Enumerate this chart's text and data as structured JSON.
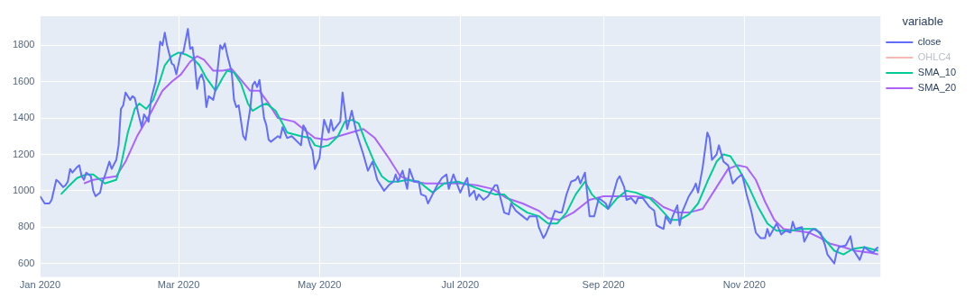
{
  "chart_data": {
    "type": "line",
    "legend_title": "variable",
    "legend": "right",
    "grid": true,
    "marker": "none",
    "line_style": "solid",
    "xlim": [
      "2020-01-01",
      "2020-12-30"
    ],
    "xticks": [
      {
        "value": "2020-01-01",
        "label": "Jan 2020"
      },
      {
        "value": "2020-03-01",
        "label": "Mar 2020"
      },
      {
        "value": "2020-05-01",
        "label": "May 2020"
      },
      {
        "value": "2020-07-01",
        "label": "Jul 2020"
      },
      {
        "value": "2020-09-01",
        "label": "Sep 2020"
      },
      {
        "value": "2020-11-01",
        "label": "Nov 2020"
      }
    ],
    "ylim": [
      525,
      1960
    ],
    "yticks": [
      600,
      800,
      1000,
      1200,
      1400,
      1600,
      1800
    ],
    "series": [
      {
        "name": "close",
        "color": "#636efa",
        "x": [
          "2020-01-01",
          "2020-01-03",
          "2020-01-05",
          "2020-01-06",
          "2020-01-08",
          "2020-01-09",
          "2020-01-11",
          "2020-01-12",
          "2020-01-13",
          "2020-01-14",
          "2020-01-15",
          "2020-01-17",
          "2020-01-18",
          "2020-01-19",
          "2020-01-20",
          "2020-01-21",
          "2020-01-23",
          "2020-01-24",
          "2020-01-25",
          "2020-01-27",
          "2020-01-28",
          "2020-01-29",
          "2020-01-31",
          "2020-02-01",
          "2020-02-03",
          "2020-02-04",
          "2020-02-05",
          "2020-02-06",
          "2020-02-07",
          "2020-02-09",
          "2020-02-10",
          "2020-02-11",
          "2020-02-13",
          "2020-02-14",
          "2020-02-15",
          "2020-02-17",
          "2020-02-18",
          "2020-02-20",
          "2020-02-21",
          "2020-02-22",
          "2020-02-23",
          "2020-02-24",
          "2020-02-25",
          "2020-02-27",
          "2020-02-28",
          "2020-02-29",
          "2020-03-02",
          "2020-03-03",
          "2020-03-05",
          "2020-03-06",
          "2020-03-07",
          "2020-03-08",
          "2020-03-09",
          "2020-03-10",
          "2020-03-11",
          "2020-03-12",
          "2020-03-13",
          "2020-03-14",
          "2020-03-16",
          "2020-03-17",
          "2020-03-19",
          "2020-03-20",
          "2020-03-21",
          "2020-03-22",
          "2020-03-24",
          "2020-03-25",
          "2020-03-26",
          "2020-03-27",
          "2020-03-29",
          "2020-03-30",
          "2020-03-31",
          "2020-04-01",
          "2020-04-02",
          "2020-04-03",
          "2020-04-04",
          "2020-04-05",
          "2020-04-07",
          "2020-04-08",
          "2020-04-09",
          "2020-04-10",
          "2020-04-13",
          "2020-04-14",
          "2020-04-15",
          "2020-04-17",
          "2020-04-19",
          "2020-04-23",
          "2020-04-24",
          "2020-04-25",
          "2020-04-27",
          "2020-04-28",
          "2020-04-29",
          "2020-05-01",
          "2020-05-03",
          "2020-05-05",
          "2020-05-06",
          "2020-05-07",
          "2020-05-10",
          "2020-05-11",
          "2020-05-13",
          "2020-05-15",
          "2020-05-17",
          "2020-05-20",
          "2020-05-22",
          "2020-05-24",
          "2020-05-26",
          "2020-05-29",
          "2020-05-31",
          "2020-06-02",
          "2020-06-03",
          "2020-06-04",
          "2020-06-06",
          "2020-06-08",
          "2020-06-09",
          "2020-06-11",
          "2020-06-13",
          "2020-06-14",
          "2020-06-16",
          "2020-06-17",
          "2020-06-19",
          "2020-06-21",
          "2020-06-23",
          "2020-06-25",
          "2020-06-26",
          "2020-06-28",
          "2020-07-01",
          "2020-07-02",
          "2020-07-04",
          "2020-07-05",
          "2020-07-07",
          "2020-07-08",
          "2020-07-09",
          "2020-07-11",
          "2020-07-13",
          "2020-07-16",
          "2020-07-17",
          "2020-07-20",
          "2020-07-22",
          "2020-07-23",
          "2020-07-25",
          "2020-07-27",
          "2020-07-30",
          "2020-07-31",
          "2020-08-03",
          "2020-08-04",
          "2020-08-06",
          "2020-08-07",
          "2020-08-09",
          "2020-08-11",
          "2020-08-13",
          "2020-08-14",
          "2020-08-16",
          "2020-08-18",
          "2020-08-20",
          "2020-08-21",
          "2020-08-22",
          "2020-08-24",
          "2020-08-26",
          "2020-08-28",
          "2020-08-30",
          "2020-09-02",
          "2020-09-03",
          "2020-09-05",
          "2020-09-07",
          "2020-09-08",
          "2020-09-10",
          "2020-09-11",
          "2020-09-13",
          "2020-09-15",
          "2020-09-16",
          "2020-09-18",
          "2020-09-21",
          "2020-09-23",
          "2020-09-24",
          "2020-09-27",
          "2020-09-28",
          "2020-09-30",
          "2020-10-01",
          "2020-10-03",
          "2020-10-04",
          "2020-10-05",
          "2020-10-08",
          "2020-10-10",
          "2020-10-11",
          "2020-10-12",
          "2020-10-14",
          "2020-10-16",
          "2020-10-17",
          "2020-10-18",
          "2020-10-20",
          "2020-10-21",
          "2020-10-23",
          "2020-10-25",
          "2020-10-27",
          "2020-10-29",
          "2020-10-31",
          "2020-11-01",
          "2020-11-02",
          "2020-11-04",
          "2020-11-06",
          "2020-11-08",
          "2020-11-10",
          "2020-11-11",
          "2020-11-12",
          "2020-11-15",
          "2020-11-17",
          "2020-11-19",
          "2020-11-21",
          "2020-11-22",
          "2020-11-23",
          "2020-11-26",
          "2020-11-27",
          "2020-11-29",
          "2020-12-01",
          "2020-12-04",
          "2020-12-06",
          "2020-12-07",
          "2020-12-10",
          "2020-12-11",
          "2020-12-12",
          "2020-12-15",
          "2020-12-17",
          "2020-12-18",
          "2020-12-21",
          "2020-12-23",
          "2020-12-25",
          "2020-12-27",
          "2020-12-28",
          "2020-12-29"
        ],
        "values": [
          970,
          930,
          930,
          950,
          1060,
          1050,
          1020,
          1030,
          1050,
          1120,
          1100,
          1130,
          1140,
          1080,
          1060,
          1100,
          1080,
          1000,
          970,
          990,
          1050,
          1080,
          1160,
          1120,
          1170,
          1250,
          1450,
          1470,
          1540,
          1500,
          1520,
          1510,
          1400,
          1350,
          1420,
          1380,
          1500,
          1600,
          1700,
          1820,
          1800,
          1870,
          1800,
          1700,
          1690,
          1640,
          1760,
          1760,
          1890,
          1780,
          1790,
          1700,
          1560,
          1620,
          1640,
          1600,
          1460,
          1520,
          1500,
          1560,
          1800,
          1780,
          1810,
          1750,
          1650,
          1500,
          1460,
          1470,
          1300,
          1280,
          1370,
          1450,
          1580,
          1600,
          1570,
          1610,
          1400,
          1360,
          1280,
          1270,
          1300,
          1290,
          1350,
          1290,
          1300,
          1250,
          1360,
          1340,
          1250,
          1220,
          1120,
          1180,
          1390,
          1320,
          1390,
          1330,
          1380,
          1540,
          1340,
          1440,
          1320,
          1200,
          1110,
          1160,
          1060,
          1000,
          1030,
          1050,
          1090,
          1050,
          1110,
          1010,
          1120,
          1050,
          1050,
          980,
          970,
          930,
          980,
          1030,
          1070,
          1090,
          1010,
          1090,
          990,
          1020,
          1070,
          970,
          1000,
          950,
          980,
          950,
          970,
          1030,
          1030,
          880,
          870,
          930,
          890,
          870,
          840,
          860,
          860,
          800,
          740,
          760,
          820,
          890,
          880,
          880,
          980,
          1050,
          1060,
          1080,
          1040,
          1100,
          860,
          860,
          960,
          930,
          900,
          970,
          1060,
          1080,
          1020,
          950,
          960,
          930,
          960,
          960,
          910,
          890,
          810,
          790,
          860,
          820,
          860,
          920,
          810,
          880,
          970,
          1010,
          1040,
          990,
          1130,
          1320,
          1290,
          1170,
          1200,
          1250,
          1160,
          1140,
          1040,
          1070,
          1090,
          1040,
          980,
          890,
          770,
          740,
          740,
          790,
          750,
          820,
          760,
          780,
          770,
          830,
          790,
          800,
          720,
          770,
          790,
          770,
          700,
          650,
          600,
          660,
          690,
          700,
          750,
          680,
          620,
          690,
          670,
          660,
          680,
          690
        ]
      },
      {
        "name": "OHLC4",
        "color": "#ef553b"
      },
      {
        "name": "SMA_10",
        "color": "#00cc96",
        "x": [
          "2020-01-10",
          "2020-01-13",
          "2020-01-17",
          "2020-01-21",
          "2020-01-24",
          "2020-01-27",
          "2020-01-29",
          "2020-02-03",
          "2020-02-05",
          "2020-02-08",
          "2020-02-11",
          "2020-02-13",
          "2020-02-16",
          "2020-02-19",
          "2020-02-22",
          "2020-02-24",
          "2020-02-27",
          "2020-03-01",
          "2020-03-04",
          "2020-03-07",
          "2020-03-10",
          "2020-03-13",
          "2020-03-17",
          "2020-03-20",
          "2020-03-22",
          "2020-03-25",
          "2020-03-28",
          "2020-03-31",
          "2020-04-02",
          "2020-04-06",
          "2020-04-08",
          "2020-04-12",
          "2020-04-15",
          "2020-04-17",
          "2020-04-23",
          "2020-04-27",
          "2020-04-29",
          "2020-05-02",
          "2020-05-05",
          "2020-05-09",
          "2020-05-12",
          "2020-05-15",
          "2020-05-18",
          "2020-05-21",
          "2020-05-25",
          "2020-05-28",
          "2020-05-31",
          "2020-06-04",
          "2020-06-08",
          "2020-06-13",
          "2020-06-19",
          "2020-06-24",
          "2020-06-30",
          "2020-07-05",
          "2020-07-11",
          "2020-07-16",
          "2020-07-20",
          "2020-07-24",
          "2020-07-30",
          "2020-08-04",
          "2020-08-08",
          "2020-08-12",
          "2020-08-16",
          "2020-08-20",
          "2020-08-24",
          "2020-08-27",
          "2020-08-31",
          "2020-09-03",
          "2020-09-07",
          "2020-09-11",
          "2020-09-15",
          "2020-09-21",
          "2020-09-25",
          "2020-09-30",
          "2020-10-04",
          "2020-10-08",
          "2020-10-12",
          "2020-10-16",
          "2020-10-20",
          "2020-10-23",
          "2020-10-26",
          "2020-10-30",
          "2020-11-03",
          "2020-11-07",
          "2020-11-11",
          "2020-11-15",
          "2020-11-21",
          "2020-11-26",
          "2020-12-02",
          "2020-12-06",
          "2020-12-10",
          "2020-12-14",
          "2020-12-18",
          "2020-12-23",
          "2020-12-26",
          "2020-12-29"
        ],
        "values": [
          980,
          1020,
          1070,
          1090,
          1090,
          1060,
          1040,
          1060,
          1140,
          1320,
          1450,
          1480,
          1450,
          1500,
          1610,
          1690,
          1740,
          1760,
          1750,
          1730,
          1690,
          1620,
          1550,
          1620,
          1660,
          1650,
          1590,
          1480,
          1440,
          1470,
          1480,
          1440,
          1370,
          1320,
          1300,
          1290,
          1250,
          1240,
          1250,
          1300,
          1380,
          1390,
          1370,
          1270,
          1150,
          1080,
          1050,
          1050,
          1060,
          1050,
          990,
          1040,
          1050,
          1030,
          1000,
          980,
          980,
          930,
          880,
          860,
          820,
          820,
          880,
          980,
          1050,
          980,
          930,
          900,
          960,
          1000,
          990,
          960,
          910,
          840,
          840,
          870,
          930,
          1050,
          1160,
          1200,
          1190,
          1110,
          1020,
          910,
          820,
          780,
          780,
          790,
          790,
          730,
          670,
          650,
          680,
          690,
          680,
          670
        ]
      },
      {
        "name": "SMA_20",
        "color": "#ab63fa",
        "x": [
          "2020-01-20",
          "2020-01-24",
          "2020-01-29",
          "2020-02-03",
          "2020-02-07",
          "2020-02-12",
          "2020-02-18",
          "2020-02-23",
          "2020-02-27",
          "2020-03-02",
          "2020-03-06",
          "2020-03-09",
          "2020-03-12",
          "2020-03-16",
          "2020-03-20",
          "2020-03-24",
          "2020-03-28",
          "2020-04-01",
          "2020-04-05",
          "2020-04-09",
          "2020-04-13",
          "2020-04-20",
          "2020-04-25",
          "2020-04-29",
          "2020-05-04",
          "2020-05-12",
          "2020-05-20",
          "2020-05-25",
          "2020-05-31",
          "2020-06-05",
          "2020-06-11",
          "2020-06-16",
          "2020-06-24",
          "2020-07-01",
          "2020-07-08",
          "2020-07-15",
          "2020-07-21",
          "2020-07-28",
          "2020-08-04",
          "2020-08-08",
          "2020-08-13",
          "2020-08-19",
          "2020-08-26",
          "2020-09-01",
          "2020-09-07",
          "2020-09-14",
          "2020-09-22",
          "2020-09-27",
          "2020-10-03",
          "2020-10-08",
          "2020-10-14",
          "2020-10-19",
          "2020-10-25",
          "2020-10-29",
          "2020-11-02",
          "2020-11-06",
          "2020-11-10",
          "2020-11-14",
          "2020-11-18",
          "2020-11-23",
          "2020-11-29",
          "2020-12-04",
          "2020-12-08",
          "2020-12-14",
          "2020-12-19",
          "2020-12-25",
          "2020-12-29"
        ],
        "values": [
          1040,
          1060,
          1070,
          1080,
          1160,
          1300,
          1430,
          1550,
          1600,
          1640,
          1710,
          1740,
          1720,
          1660,
          1660,
          1670,
          1610,
          1550,
          1550,
          1480,
          1400,
          1380,
          1330,
          1290,
          1280,
          1310,
          1340,
          1290,
          1180,
          1080,
          1050,
          1040,
          1040,
          1040,
          1030,
          1010,
          960,
          930,
          890,
          850,
          840,
          880,
          950,
          970,
          970,
          970,
          960,
          910,
          880,
          880,
          900,
          1000,
          1120,
          1140,
          1130,
          1060,
          940,
          840,
          790,
          780,
          770,
          740,
          710,
          690,
          670,
          660,
          650
        ]
      }
    ]
  }
}
